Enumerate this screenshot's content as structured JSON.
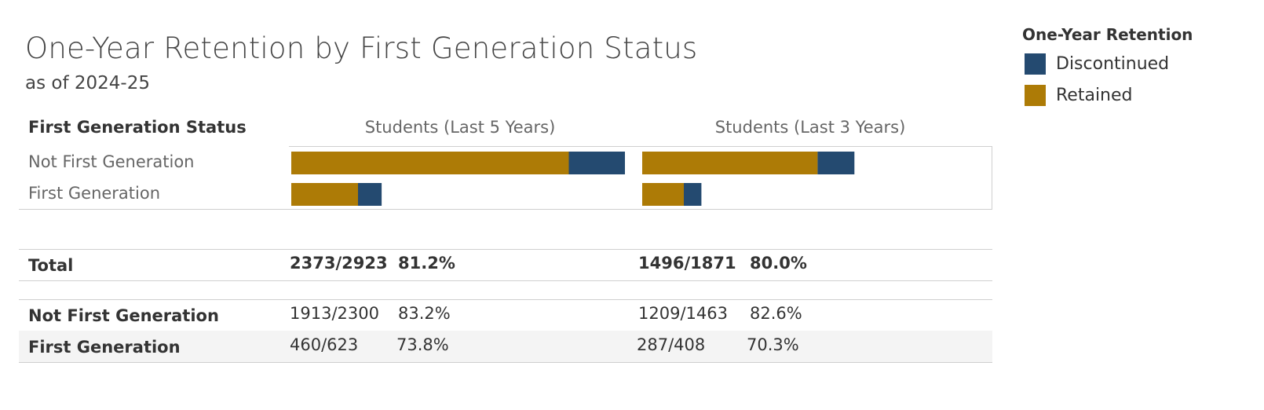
{
  "header": {
    "title": "One-Year Retention by First Generation Status",
    "subtitle": "as of 2024-25"
  },
  "legend": {
    "title": "One-Year Retention",
    "items": [
      {
        "label": "Discontinued",
        "color": "#244a70"
      },
      {
        "label": "Retained",
        "color": "#ad7b06"
      }
    ]
  },
  "table": {
    "row_header": "First Generation Status",
    "columns": [
      "Students (Last 5 Years)",
      "Students (Last 3 Years)"
    ],
    "rows": [
      "Not First Generation",
      "First Generation"
    ]
  },
  "chart_data": {
    "type": "bar",
    "stacked": true,
    "orientation": "horizontal",
    "panels": [
      {
        "name": "Students (Last 5 Years)",
        "categories": [
          "Not First Generation",
          "First Generation"
        ],
        "series": [
          {
            "name": "Retained",
            "values": [
              1913,
              460
            ]
          },
          {
            "name": "Discontinued",
            "values": [
              387,
              163
            ]
          }
        ]
      },
      {
        "name": "Students (Last 3 Years)",
        "categories": [
          "Not First Generation",
          "First Generation"
        ],
        "series": [
          {
            "name": "Retained",
            "values": [
              1209,
              287
            ]
          },
          {
            "name": "Discontinued",
            "values": [
              254,
              121
            ]
          }
        ]
      }
    ]
  },
  "summary": {
    "total": {
      "label": "Total",
      "last5": {
        "count": "2373/2923",
        "pct": "81.2%"
      },
      "last3": {
        "count": "1496/1871",
        "pct": "80.0%"
      }
    },
    "rows": [
      {
        "label": "Not First Generation",
        "last5": {
          "count": "1913/2300",
          "pct": "83.2%"
        },
        "last3": {
          "count": "1209/1463",
          "pct": "82.6%"
        }
      },
      {
        "label": "First Generation",
        "last5": {
          "count": "460/623",
          "pct": "73.8%"
        },
        "last3": {
          "count": "287/408",
          "pct": "70.3%"
        }
      }
    ]
  }
}
